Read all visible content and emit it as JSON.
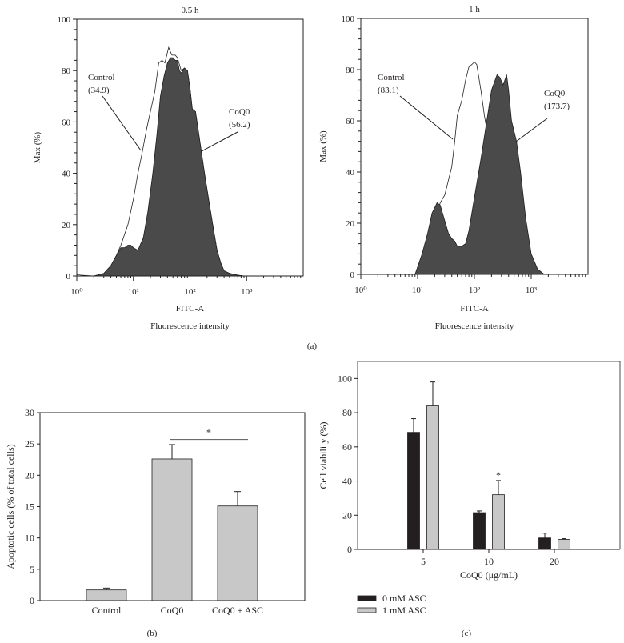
{
  "figure": {
    "panel_a_label": "(a)",
    "panel_b_label": "(b)",
    "panel_c_label": "(c)"
  },
  "chart_data": [
    {
      "type": "area",
      "title": "0.5 h",
      "xlabel": "FITC-A",
      "xsublabel": "Fluorescence intensity",
      "ylabel": "Max (%)",
      "xscale": "log",
      "xlim": [
        1,
        10000
      ],
      "ylim": [
        0,
        100
      ],
      "xticks": [
        1,
        10,
        100,
        1000
      ],
      "xtick_labels": [
        "10⁰",
        "10¹",
        "10²",
        "10³"
      ],
      "yticks": [
        0,
        20,
        40,
        60,
        80,
        100
      ],
      "ytick_labels": [
        "0",
        "20",
        "40",
        "60",
        "80",
        "100"
      ],
      "series": [
        {
          "name": "Control",
          "fill": "#ffffff",
          "stroke": "#231f20",
          "x": [
            1,
            1.2,
            2,
            3,
            4,
            5,
            6,
            8,
            10,
            12,
            14,
            17,
            20,
            24,
            28,
            32,
            36,
            42,
            48,
            55,
            60,
            70,
            80,
            90,
            100,
            110,
            125,
            150,
            180,
            220,
            260,
            300,
            350,
            400,
            500,
            700,
            900
          ],
          "y": [
            0.5,
            0.3,
            0,
            1,
            4,
            8,
            12,
            20,
            30,
            40,
            47,
            57,
            64,
            72,
            83,
            84,
            83,
            89,
            86,
            86,
            85,
            80,
            81,
            80,
            73,
            65,
            64,
            52,
            40,
            28,
            18,
            10,
            5,
            2,
            1,
            0.3,
            0
          ]
        },
        {
          "name": "CoQ0",
          "fill": "#4a4a4a",
          "stroke": "#231f20",
          "x": [
            2,
            3,
            4,
            5,
            6,
            7,
            8,
            9,
            10,
            12,
            15,
            18,
            22,
            26,
            30,
            35,
            40,
            45,
            50,
            55,
            60,
            65,
            70,
            80,
            90,
            100,
            110,
            125,
            150,
            180,
            220,
            260,
            300,
            350,
            400,
            500,
            700,
            900
          ],
          "y": [
            0,
            1,
            4,
            8,
            11,
            11,
            12,
            12,
            11,
            10,
            15,
            25,
            40,
            55,
            70,
            78,
            83,
            85,
            85,
            84,
            84,
            80,
            79,
            81,
            80,
            73,
            65,
            64,
            52,
            40,
            28,
            18,
            10,
            5,
            2,
            1,
            0.3,
            0
          ]
        }
      ],
      "annotations": [
        {
          "series": "Control",
          "label": "Control",
          "value": "(34.9)"
        },
        {
          "series": "CoQ0",
          "label": "CoQ0",
          "value": "(56.2)"
        }
      ]
    },
    {
      "type": "area",
      "title": "1 h",
      "xlabel": "FITC-A",
      "xsublabel": "Fluorescence intensity",
      "ylabel": "Max (%)",
      "xscale": "log",
      "xlim": [
        1,
        10000
      ],
      "ylim": [
        0,
        100
      ],
      "xticks": [
        1,
        10,
        100,
        1000
      ],
      "xtick_labels": [
        "10⁰",
        "10¹",
        "10²",
        "10³"
      ],
      "yticks": [
        0,
        20,
        40,
        60,
        80,
        100
      ],
      "ytick_labels": [
        "0",
        "20",
        "40",
        "60",
        "80",
        "100"
      ],
      "series": [
        {
          "name": "Control",
          "fill": "#ffffff",
          "stroke": "#231f20",
          "x": [
            10,
            15,
            20,
            25,
            30,
            40,
            45,
            50,
            60,
            70,
            80,
            90,
            100,
            110,
            130,
            150,
            170,
            220,
            300,
            500,
            800
          ],
          "y": [
            0,
            10,
            20,
            28,
            31,
            42,
            52,
            62,
            68,
            76,
            81,
            82,
            83,
            82,
            72,
            62,
            55,
            40,
            20,
            5,
            0
          ]
        },
        {
          "name": "CoQ0",
          "fill": "#4a4a4a",
          "stroke": "#231f20",
          "x": [
            9,
            12,
            15,
            18,
            22,
            25,
            30,
            35,
            40,
            45,
            50,
            60,
            70,
            80,
            100,
            130,
            160,
            200,
            250,
            280,
            320,
            370,
            400,
            450,
            550,
            650,
            800,
            1000,
            1300,
            1700
          ],
          "y": [
            0,
            8,
            16,
            24,
            28,
            27,
            21,
            16,
            14,
            13,
            11,
            11,
            12,
            17,
            30,
            45,
            58,
            72,
            78,
            77,
            74,
            78,
            72,
            60,
            52,
            40,
            22,
            8,
            2,
            0
          ]
        }
      ],
      "annotations": [
        {
          "series": "Control",
          "label": "Control",
          "value": "(83.1)"
        },
        {
          "series": "CoQ0",
          "label": "CoQ0",
          "value": "(173.7)"
        }
      ]
    },
    {
      "type": "bar",
      "categories": [
        "Control",
        "CoQ0",
        "CoQ0 + ASC"
      ],
      "values": [
        1.7,
        22.6,
        15.1
      ],
      "errors": [
        0.3,
        2.3,
        2.3
      ],
      "bar_color": "#c8c8c8",
      "xlabel": "",
      "ylabel": "Apoptotic cells (% of total cells)",
      "ylim": [
        0,
        30
      ],
      "yticks": [
        0,
        5,
        10,
        15,
        20,
        25,
        30
      ],
      "significance": {
        "from": "CoQ0",
        "to": "CoQ0 + ASC",
        "level": 25.7,
        "label": "*"
      }
    },
    {
      "type": "bar",
      "categories": [
        "5",
        "10",
        "20"
      ],
      "xlabel": "CoQ0 (μg/mL)",
      "ylabel": "Cell viability (%)",
      "ylim": [
        0,
        110
      ],
      "yticks": [
        0,
        20,
        40,
        60,
        80,
        100
      ],
      "legend_position": "bottom-left",
      "series": [
        {
          "name": "0 mM ASC",
          "color": "#231f20",
          "values": [
            68.5,
            21.5,
            6.7
          ],
          "errors": [
            8.0,
            1.0,
            2.8
          ]
        },
        {
          "name": "1 mM ASC",
          "color": "#c8c8c8",
          "values": [
            84.0,
            32.0,
            5.9
          ],
          "errors": [
            14.0,
            8.3,
            0.4
          ]
        }
      ],
      "annotations": [
        {
          "category": "10",
          "series": "1 mM ASC",
          "label": "*"
        }
      ]
    }
  ]
}
